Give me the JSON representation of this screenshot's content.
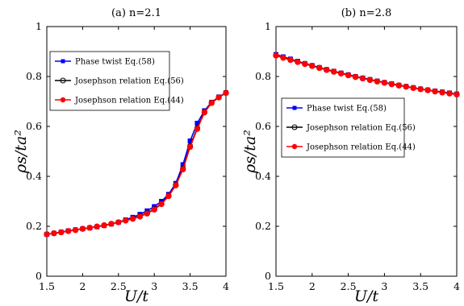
{
  "chart_data": [
    {
      "type": "line",
      "title": "(a) n=2.1",
      "xlabel": "U/t",
      "ylabel": "ρs/ta²",
      "xlim": [
        1.5,
        4
      ],
      "ylim": [
        0,
        1
      ],
      "xticks": [
        "1.5",
        "2",
        "2.5",
        "3",
        "3.5",
        "4"
      ],
      "yticks": [
        "0",
        "0.2",
        "0.4",
        "0.6",
        "0.8",
        "1"
      ],
      "grid": false,
      "legend_position": "upper-left",
      "x": [
        1.5,
        1.6,
        1.7,
        1.8,
        1.9,
        2.0,
        2.1,
        2.2,
        2.3,
        2.4,
        2.5,
        2.6,
        2.7,
        2.8,
        2.9,
        3.0,
        3.1,
        3.2,
        3.3,
        3.4,
        3.5,
        3.6,
        3.7,
        3.8,
        3.9,
        4.0
      ],
      "series": [
        {
          "name": "Phase twist Eq.(58)",
          "color": "#0000ff",
          "marker": "square",
          "values": [
            0.168,
            0.172,
            0.177,
            0.182,
            0.186,
            0.19,
            0.194,
            0.198,
            0.203,
            0.209,
            0.216,
            0.226,
            0.236,
            0.248,
            0.262,
            0.279,
            0.3,
            0.328,
            0.372,
            0.447,
            0.542,
            0.613,
            0.663,
            0.697,
            0.718,
            0.735
          ]
        },
        {
          "name": "Josephson relation Eq.(56)",
          "color": "#000000",
          "marker": "circle",
          "values": [
            0.168,
            0.172,
            0.176,
            0.181,
            0.185,
            0.19,
            0.194,
            0.199,
            0.204,
            0.21,
            0.216,
            0.224,
            0.231,
            0.241,
            0.253,
            0.269,
            0.291,
            0.323,
            0.366,
            0.431,
            0.522,
            0.594,
            0.658,
            0.695,
            0.717,
            0.735
          ]
        },
        {
          "name": "Josephson relation Eq.(44)",
          "color": "#ff0000",
          "marker": "circle",
          "values": [
            0.168,
            0.172,
            0.176,
            0.181,
            0.185,
            0.19,
            0.194,
            0.199,
            0.204,
            0.21,
            0.216,
            0.223,
            0.23,
            0.239,
            0.251,
            0.267,
            0.289,
            0.321,
            0.364,
            0.428,
            0.518,
            0.59,
            0.656,
            0.694,
            0.716,
            0.734
          ]
        }
      ]
    },
    {
      "type": "line",
      "title": "(b) n=2.8",
      "xlabel": "U/t",
      "ylabel": "ρs/ta²",
      "xlim": [
        1.5,
        4
      ],
      "ylim": [
        0,
        1
      ],
      "xticks": [
        "1.5",
        "2",
        "2.5",
        "3",
        "3.5",
        "4"
      ],
      "yticks": [
        "0",
        "0.2",
        "0.4",
        "0.6",
        "0.8",
        "1"
      ],
      "grid": false,
      "legend_position": "center-left",
      "x": [
        1.5,
        1.6,
        1.7,
        1.8,
        1.9,
        2.0,
        2.1,
        2.2,
        2.3,
        2.4,
        2.5,
        2.6,
        2.7,
        2.8,
        2.9,
        3.0,
        3.1,
        3.2,
        3.3,
        3.4,
        3.5,
        3.6,
        3.7,
        3.8,
        3.9,
        4.0
      ],
      "series": [
        {
          "name": "Phase twist Eq.(58)",
          "color": "#0000ff",
          "marker": "square",
          "values": [
            0.888,
            0.879,
            0.87,
            0.861,
            0.852,
            0.844,
            0.836,
            0.828,
            0.821,
            0.814,
            0.807,
            0.8,
            0.794,
            0.788,
            0.782,
            0.776,
            0.771,
            0.765,
            0.76,
            0.755,
            0.75,
            0.746,
            0.742,
            0.738,
            0.734,
            0.73
          ]
        },
        {
          "name": "Josephson relation Eq.(56)",
          "color": "#000000",
          "marker": "circle",
          "values": [
            0.885,
            0.876,
            0.867,
            0.859,
            0.851,
            0.843,
            0.835,
            0.827,
            0.82,
            0.813,
            0.806,
            0.799,
            0.793,
            0.787,
            0.781,
            0.776,
            0.77,
            0.765,
            0.76,
            0.755,
            0.75,
            0.746,
            0.741,
            0.737,
            0.733,
            0.729
          ]
        },
        {
          "name": "Josephson relation Eq.(44)",
          "color": "#ff0000",
          "marker": "circle",
          "values": [
            0.884,
            0.875,
            0.866,
            0.858,
            0.85,
            0.842,
            0.834,
            0.826,
            0.819,
            0.812,
            0.805,
            0.798,
            0.792,
            0.786,
            0.78,
            0.775,
            0.769,
            0.764,
            0.759,
            0.754,
            0.749,
            0.745,
            0.74,
            0.736,
            0.732,
            0.728
          ]
        }
      ]
    }
  ]
}
